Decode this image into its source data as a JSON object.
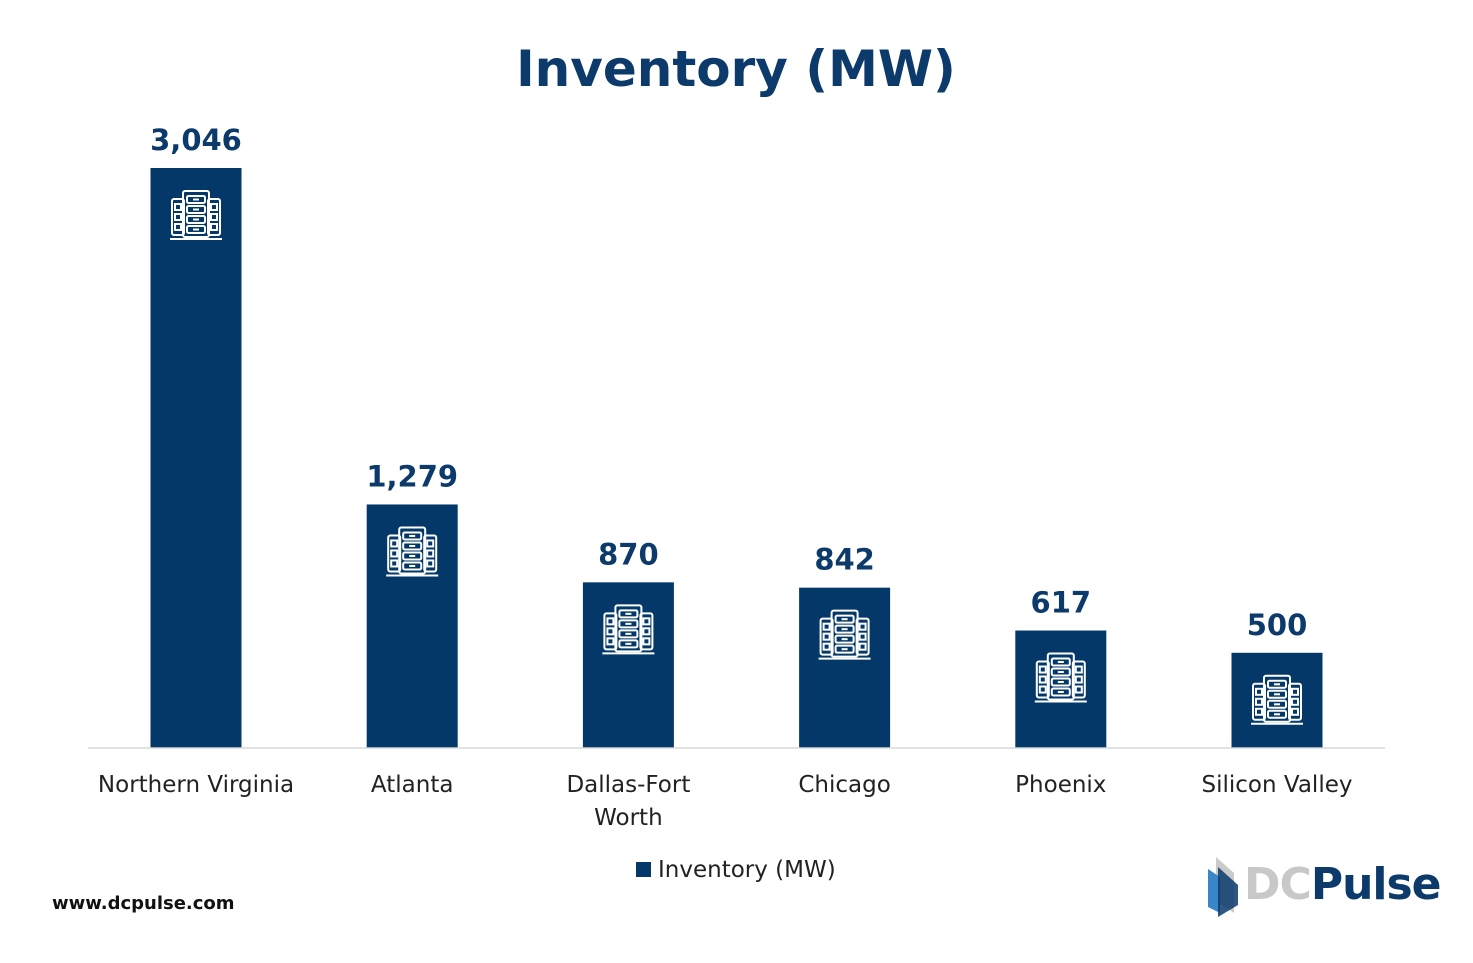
{
  "chart_data": {
    "type": "bar",
    "title": "Inventory (MW)",
    "categories": [
      "Northern Virginia",
      "Atlanta",
      "Dallas-Fort Worth",
      "Chicago",
      "Phoenix",
      "Silicon Valley"
    ],
    "category_label_lines": [
      [
        "Northern Virginia"
      ],
      [
        "Atlanta"
      ],
      [
        "Dallas-Fort",
        "Worth"
      ],
      [
        "Chicago"
      ],
      [
        "Phoenix"
      ],
      [
        "Silicon Valley"
      ]
    ],
    "values": [
      3046,
      1279,
      870,
      842,
      617,
      500
    ],
    "data_labels": [
      "3,046",
      "1,279",
      "870",
      "842",
      "617",
      "500"
    ],
    "series": [
      {
        "name": "Inventory (MW)",
        "values": [
          3046,
          1279,
          870,
          842,
          617,
          500
        ]
      }
    ],
    "legend": {
      "label": "Inventory (MW)",
      "placement": "bottom"
    },
    "bar_icon": "server-rack-icon",
    "xlabel": "",
    "ylabel": "",
    "ylim": [
      0,
      3046
    ],
    "grid": false,
    "bar_color": "#033869"
  },
  "footer": {
    "website": "www.dcpulse.com"
  },
  "logo": {
    "part1": "DC",
    "part2": "Pulse"
  }
}
